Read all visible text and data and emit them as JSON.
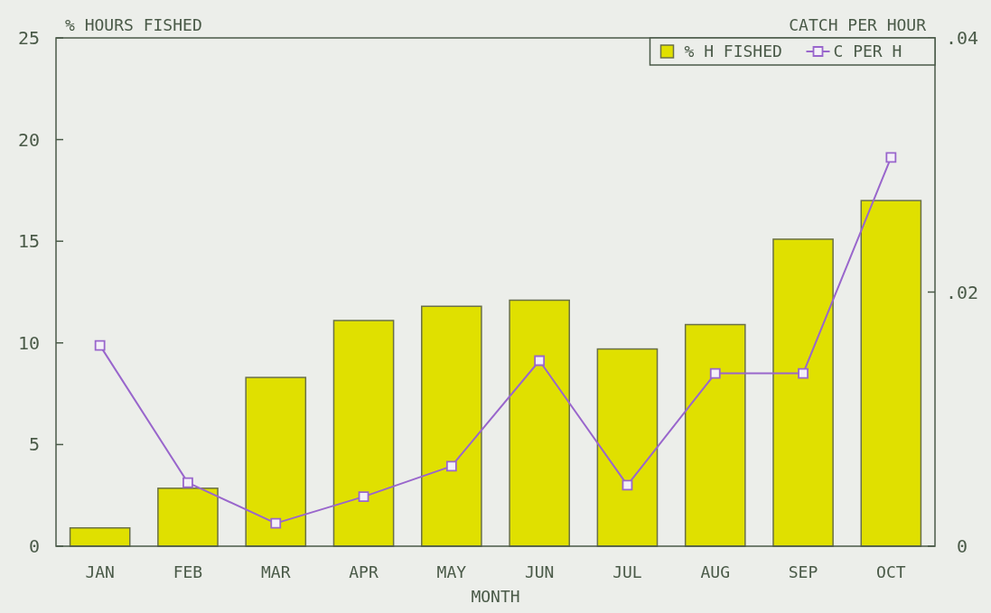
{
  "chart_data": {
    "type": "bar",
    "xlabel": "MONTH",
    "ylabel": "% HOURS FISHED",
    "y2label": "CATCH PER HOUR",
    "categories": [
      "JAN",
      "FEB",
      "MAR",
      "APR",
      "MAY",
      "JUN",
      "JUL",
      "AUG",
      "SEP",
      "OCT"
    ],
    "series": [
      {
        "name": "% H FISHED",
        "color": "#e0e000",
        "values": [
          0.9,
          2.85,
          8.3,
          11.1,
          11.8,
          12.1,
          9.7,
          10.9,
          15.1,
          17.0
        ]
      },
      {
        "name": "C PER H",
        "type": "line",
        "axis": "y2",
        "color": "#9966cc",
        "marker": "square",
        "values": [
          0.0158,
          0.005,
          0.0018,
          0.0039,
          0.0063,
          0.0146,
          0.0048,
          0.0136,
          0.0136,
          0.0306
        ]
      }
    ],
    "ylim": [
      0,
      25
    ],
    "yticks": [
      0,
      5,
      10,
      15,
      20,
      25
    ],
    "y2lim": [
      0,
      0.04
    ],
    "y2ticks": [
      0,
      {
        "value": 0.02,
        "label": ".02"
      },
      {
        "value": 0.04,
        "label": ".04"
      }
    ],
    "legend": "top right",
    "grid": false
  }
}
